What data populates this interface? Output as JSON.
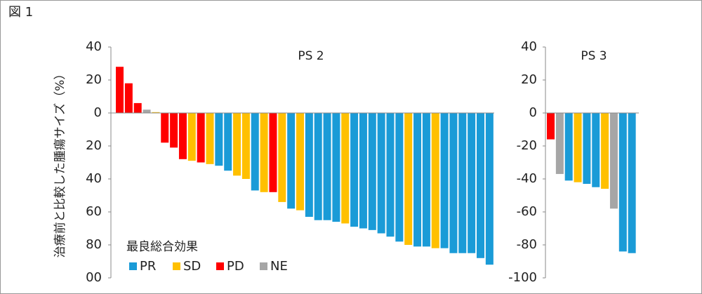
{
  "figure_label": "図 1",
  "chart_data": [
    {
      "type": "bar",
      "title": "PS 2",
      "y_label": "治療前と比較した腫瘍サイズ（%）",
      "legend_title": "最良総合効果",
      "legend": "bottom-left",
      "ylim": [
        -100,
        40
      ],
      "yticks": [
        40,
        20,
        0,
        {
          "value": -20,
          "label": "20"
        },
        {
          "value": -40,
          "label": "40"
        },
        {
          "value": -60,
          "label": "60"
        },
        {
          "value": -80,
          "label": "80"
        },
        {
          "value": -100,
          "label": "00"
        }
      ],
      "series": [
        {
          "name": "PR",
          "color": "#1a9bd7",
          "values": [
            null,
            null,
            null,
            null,
            null,
            null,
            null,
            null,
            null,
            null,
            null,
            -32,
            -35,
            null,
            null,
            -47,
            null,
            null,
            null,
            -58,
            null,
            -63,
            -65,
            -65,
            -66,
            null,
            -69,
            -70,
            -71,
            -73,
            -75,
            -78,
            null,
            -81,
            -81,
            null,
            -82,
            -85,
            -85,
            -85,
            -88,
            -92
          ]
        },
        {
          "name": "SD",
          "color": "#ffc000",
          "values": [
            null,
            null,
            null,
            null,
            0.5,
            null,
            null,
            null,
            -29,
            null,
            -31,
            null,
            null,
            -38,
            -40,
            null,
            -48,
            null,
            -54,
            null,
            -59,
            null,
            null,
            null,
            null,
            -67,
            null,
            null,
            null,
            null,
            null,
            null,
            -80,
            null,
            null,
            -82,
            null,
            null,
            null,
            null,
            null,
            null
          ]
        },
        {
          "name": "PD",
          "color": "#ff0000",
          "values": [
            28,
            18,
            6,
            null,
            null,
            -18,
            -21,
            -28,
            null,
            -30,
            null,
            null,
            null,
            null,
            null,
            null,
            null,
            -48,
            null,
            null,
            null,
            null,
            null,
            null,
            null,
            null,
            null,
            null,
            null,
            null,
            null,
            null,
            null,
            null,
            null,
            null,
            null,
            null,
            null,
            null,
            null,
            null
          ]
        },
        {
          "name": "NE",
          "color": "#a6a6a6",
          "values": [
            null,
            null,
            null,
            2,
            null,
            null,
            null,
            null,
            null,
            null,
            null,
            null,
            null,
            null,
            null,
            null,
            null,
            null,
            null,
            null,
            null,
            null,
            null,
            null,
            null,
            null,
            null,
            null,
            null,
            null,
            null,
            null,
            null,
            null,
            null,
            null,
            null,
            null,
            null,
            null,
            null,
            null
          ]
        }
      ]
    },
    {
      "type": "bar",
      "title": "PS 3",
      "ylim": [
        -100,
        40
      ],
      "yticks": [
        40,
        20,
        0,
        -20,
        -40,
        -60,
        -80,
        -100
      ],
      "series": [
        {
          "color": "#1a9bd7",
          "values": [
            null,
            null,
            -41,
            null,
            -43,
            -45,
            null,
            null,
            -84,
            -85
          ]
        },
        {
          "color": "#ffc000",
          "values": [
            null,
            null,
            null,
            -42,
            null,
            null,
            -46,
            null,
            null,
            null
          ]
        },
        {
          "color": "#ff0000",
          "values": [
            -16,
            null,
            null,
            null,
            null,
            null,
            null,
            null,
            null,
            null
          ]
        },
        {
          "color": "#a6a6a6",
          "values": [
            null,
            -37,
            null,
            null,
            null,
            null,
            null,
            -58,
            null,
            null
          ]
        }
      ]
    }
  ]
}
